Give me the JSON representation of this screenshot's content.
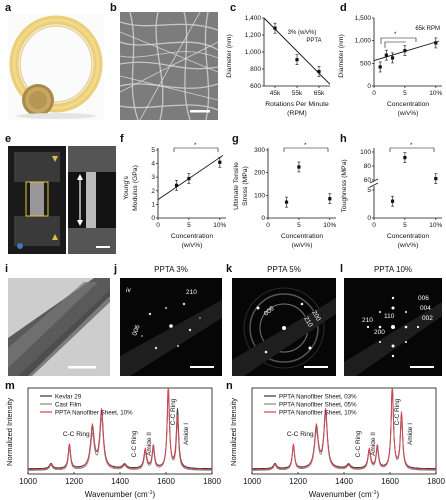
{
  "panels": {
    "a": "a",
    "b": "b",
    "c": "c",
    "d": "d",
    "e": "e",
    "f": "f",
    "g": "g",
    "h": "h",
    "i": "i",
    "j": "j",
    "k": "k",
    "l": "l",
    "m": "m",
    "n": "n"
  },
  "panel_c": {
    "ylabel": "Diameter (nm)",
    "xlabel_line1": "Rotations Per Minute",
    "xlabel_line2": "(RPM)",
    "annotation_line1": "3% (w/v%)",
    "annotation_line2": "PPTA",
    "yticks": [
      "1,400",
      "1,200",
      "1,000",
      "800",
      "600"
    ],
    "xticks": [
      "45k",
      "55k",
      "65k"
    ]
  },
  "panel_d": {
    "ylabel": "Diameter (nm)",
    "xlabel_line1": "Concentration",
    "xlabel_line2": "(w/v%)",
    "annotation": "65k RPM",
    "yticks": [
      "1,500",
      "1,000",
      "500",
      "0"
    ],
    "xticks": [
      "0",
      "5",
      "10%"
    ],
    "star": "*"
  },
  "panel_f": {
    "ylabel_line1": "Young's",
    "ylabel_line2": "Modulus (GPa)",
    "xlabel_line1": "Concentration",
    "xlabel_line2": "(w/v%)",
    "yticks": [
      "5",
      "4",
      "3",
      "2",
      "1",
      "0"
    ],
    "xticks": [
      "0",
      "5",
      "10%"
    ],
    "star": "*"
  },
  "panel_g": {
    "ylabel_line1": "Ultimate Tensile",
    "ylabel_line2": "Stress (MPa)",
    "xlabel_line1": "Concentration",
    "xlabel_line2": "(w/v%)",
    "yticks": [
      "300",
      "200",
      "100",
      "0"
    ],
    "xticks": [
      "0",
      "5",
      "10%"
    ],
    "star": "*"
  },
  "panel_h": {
    "ylabel": "Toughness (MPa)",
    "xlabel_line1": "Concentration",
    "xlabel_line2": "(w/v%)",
    "yticks": [
      "100",
      "80",
      "60",
      "5",
      "0"
    ],
    "xticks": [
      "0",
      "5",
      "10%"
    ],
    "star": "*"
  },
  "saed": {
    "j_title": "PPTA 3%",
    "k_title": "PPTA 5%",
    "l_title": "PPTA 10%",
    "j_roman": "iv",
    "j_labels": [
      "006",
      "210"
    ],
    "k_labels": [
      "006",
      "210",
      "200"
    ],
    "l_labels": [
      "210",
      "200",
      "110",
      "006",
      "004",
      "002"
    ]
  },
  "panel_m": {
    "ylabel": "Normalized Intensity",
    "xlabel": "Wavenumber (cm",
    "xlabel_sup": "-1",
    "xlabel_end": ")",
    "xticks": [
      "1000",
      "1200",
      "1400",
      "1600",
      "1800"
    ],
    "legend": [
      "Kevlar 29",
      "Cast Film",
      "PPTA Nanofiber Sheet, 10%"
    ],
    "annotations": [
      "C-C Ring",
      "C-C Ring",
      "Amide II",
      "C-C Ring",
      "Amide I"
    ]
  },
  "panel_n": {
    "ylabel": "Normalized Intensity",
    "xlabel": "Wavenumber (cm",
    "xlabel_sup": "-1",
    "xlabel_end": ")",
    "xticks": [
      "1000",
      "1200",
      "1400",
      "1600",
      "1800"
    ],
    "legend": [
      "PPTA Nanofiber Sheet, 03%",
      "PPTA Nanofiber Sheet, 05%",
      "PPTA Nanofiber Sheet, 10%"
    ],
    "annotations": [
      "C-C Ring",
      "C-C Ring",
      "Amide II",
      "C-C Ring",
      "Amide I"
    ]
  },
  "colors": {
    "series_dark": "#333333",
    "series_gray": "#888888",
    "series_red": "#d9404e",
    "fiber_ring": "#e8c664"
  },
  "chart_data": [
    {
      "panel": "c",
      "type": "scatter",
      "x": [
        45000,
        55000,
        65000
      ],
      "values": [
        1280,
        910,
        770
      ],
      "fit": [
        [
          40000,
          1400
        ],
        [
          70000,
          620
        ]
      ],
      "xlabel": "Rotations Per Minute (RPM)",
      "ylabel": "Diameter (nm)",
      "ylim": [
        600,
        1400
      ]
    },
    {
      "panel": "d",
      "type": "scatter",
      "x": [
        1,
        2,
        3,
        5,
        10
      ],
      "values": [
        420,
        680,
        620,
        780,
        950
      ],
      "fit": [
        [
          0,
          560
        ],
        [
          10.5,
          990
        ]
      ],
      "xlabel": "Concentration (w/v%)",
      "ylabel": "Diameter (nm)",
      "ylim": [
        0,
        1500
      ]
    },
    {
      "panel": "f",
      "type": "scatter",
      "x": [
        3,
        5,
        10
      ],
      "values": [
        2.4,
        2.9,
        4.1
      ],
      "fit": [
        [
          0,
          1.35
        ],
        [
          10.5,
          4.6
        ]
      ],
      "xlabel": "Concentration (w/v%)",
      "ylabel": "Young's Modulus (GPa)",
      "ylim": [
        0,
        5
      ]
    },
    {
      "panel": "g",
      "type": "scatter",
      "x": [
        3,
        5,
        10
      ],
      "values": [
        70,
        225,
        85
      ],
      "xlabel": "Concentration (w/v%)",
      "ylabel": "Ultimate Tensile Stress (MPa)",
      "ylim": [
        0,
        300
      ]
    },
    {
      "panel": "h",
      "type": "scatter",
      "x": [
        3,
        5,
        10
      ],
      "values": [
        3,
        92,
        62
      ],
      "xlabel": "Concentration (w/v%)",
      "ylabel": "Toughness (MPa)"
    },
    {
      "panel": "m",
      "type": "line",
      "xlabel": "Wavenumber (cm-1)",
      "ylabel": "Normalized Intensity",
      "xlim": [
        1000,
        1800
      ],
      "series": [
        {
          "name": "Kevlar 29",
          "color": "#333333"
        },
        {
          "name": "Cast Film",
          "color": "#888888"
        },
        {
          "name": "PPTA Nanofiber Sheet, 10%",
          "color": "#d9404e"
        }
      ],
      "peaks": [
        1180,
        1280,
        1320,
        1510,
        1540,
        1610,
        1650
      ]
    },
    {
      "panel": "n",
      "type": "line",
      "xlabel": "Wavenumber (cm-1)",
      "ylabel": "Normalized Intensity",
      "xlim": [
        1000,
        1800
      ],
      "series": [
        {
          "name": "PPTA Nanofiber Sheet, 03%",
          "color": "#333333"
        },
        {
          "name": "PPTA Nanofiber Sheet, 05%",
          "color": "#888888"
        },
        {
          "name": "PPTA Nanofiber Sheet, 10%",
          "color": "#d9404e"
        }
      ],
      "peaks": [
        1180,
        1280,
        1320,
        1510,
        1540,
        1610,
        1650
      ]
    }
  ]
}
